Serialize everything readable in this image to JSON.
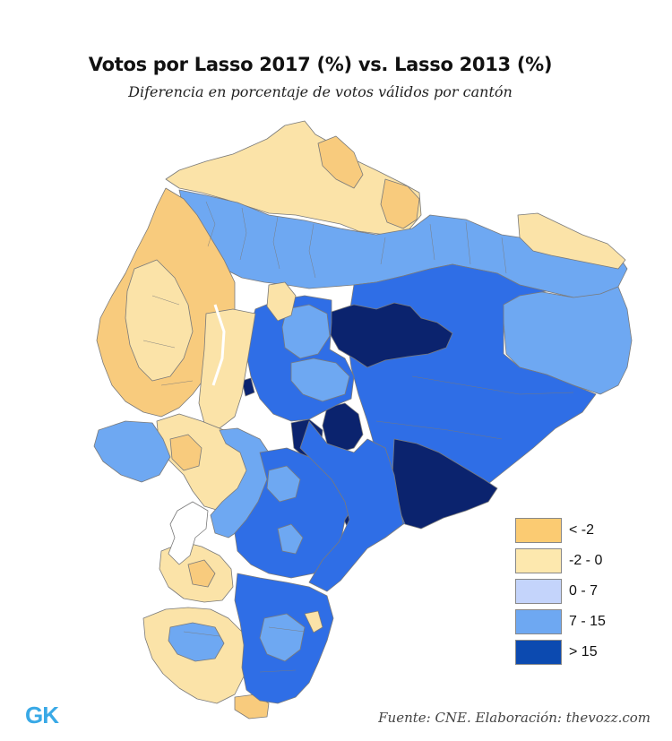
{
  "header": {
    "title": "Votos por Lasso 2017 (%) vs. Lasso 2013 (%)",
    "subtitle": "Diferencia en porcentaje de votos válidos por cantón"
  },
  "legend": {
    "items": [
      {
        "label": "< -2",
        "color": "#fbcb72"
      },
      {
        "label": "-2 - 0",
        "color": "#fde8ae"
      },
      {
        "label": "0 - 7",
        "color": "#c4d4fb"
      },
      {
        "label": "7 - 15",
        "color": "#6ea8f2"
      },
      {
        "label": "> 15",
        "color": "#0c4ab0"
      }
    ]
  },
  "map": {
    "colors": {
      "orange": "#f8cb7d",
      "cream": "#fbe3a8",
      "light_blue": "#6ea8f2",
      "mid_blue": "#3f7fe6",
      "blue": "#2f6ee6",
      "dark_blue": "#1a48c8",
      "navy": "#0b236e",
      "border": "#7a7a7a",
      "gulf": "#ffffff"
    }
  },
  "footer": {
    "logo": "GK",
    "source": "Fuente: CNE. Elaboración: thevozz.com"
  }
}
